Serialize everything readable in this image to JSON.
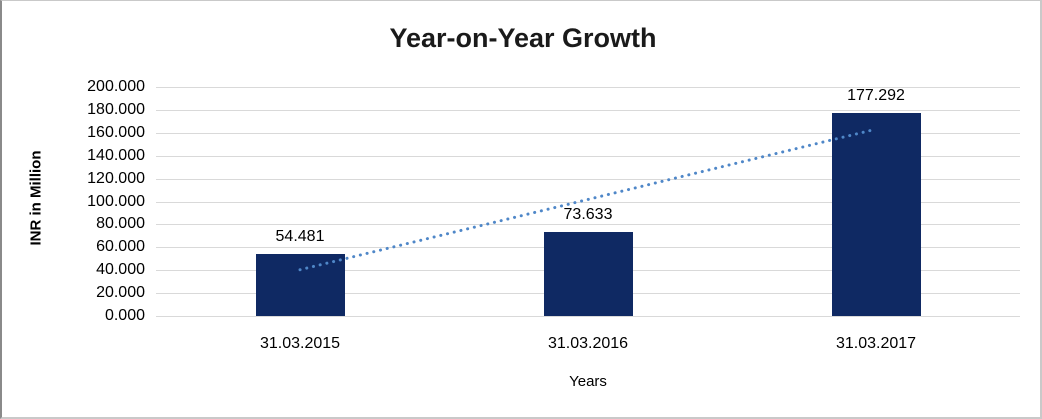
{
  "chart": {
    "title": "Year-on-Year Growth",
    "y_axis_title": "INR in Million",
    "x_axis_title": "Years"
  },
  "chart_data": {
    "type": "bar",
    "title": "Year-on-Year Growth",
    "xlabel": "Years",
    "ylabel": "INR in Million",
    "categories": [
      "31.03.2015",
      "31.03.2016",
      "31.03.2017"
    ],
    "values": [
      54.481,
      73.633,
      177.292
    ],
    "data_labels": [
      "54.481",
      "73.633",
      "177.292"
    ],
    "ylim": [
      0,
      200
    ],
    "ytick_step": 20,
    "ytick_labels_top_to_bottom": [
      "200.000",
      "180.000",
      "160.000",
      "140.000",
      "120.000",
      "100.000",
      "80.000",
      "60.000",
      "40.000",
      "20.000",
      "0.000"
    ],
    "grid": true,
    "legend": false,
    "bar_color": "#0f2963",
    "gridline_color": "#d9d9d9",
    "trendline": {
      "type": "linear",
      "style": "dotted",
      "color": "#4f87c8",
      "start": {
        "category": "31.03.2015",
        "value": 40.4
      },
      "end": {
        "category": "31.03.2017",
        "value": 163.2
      }
    }
  }
}
